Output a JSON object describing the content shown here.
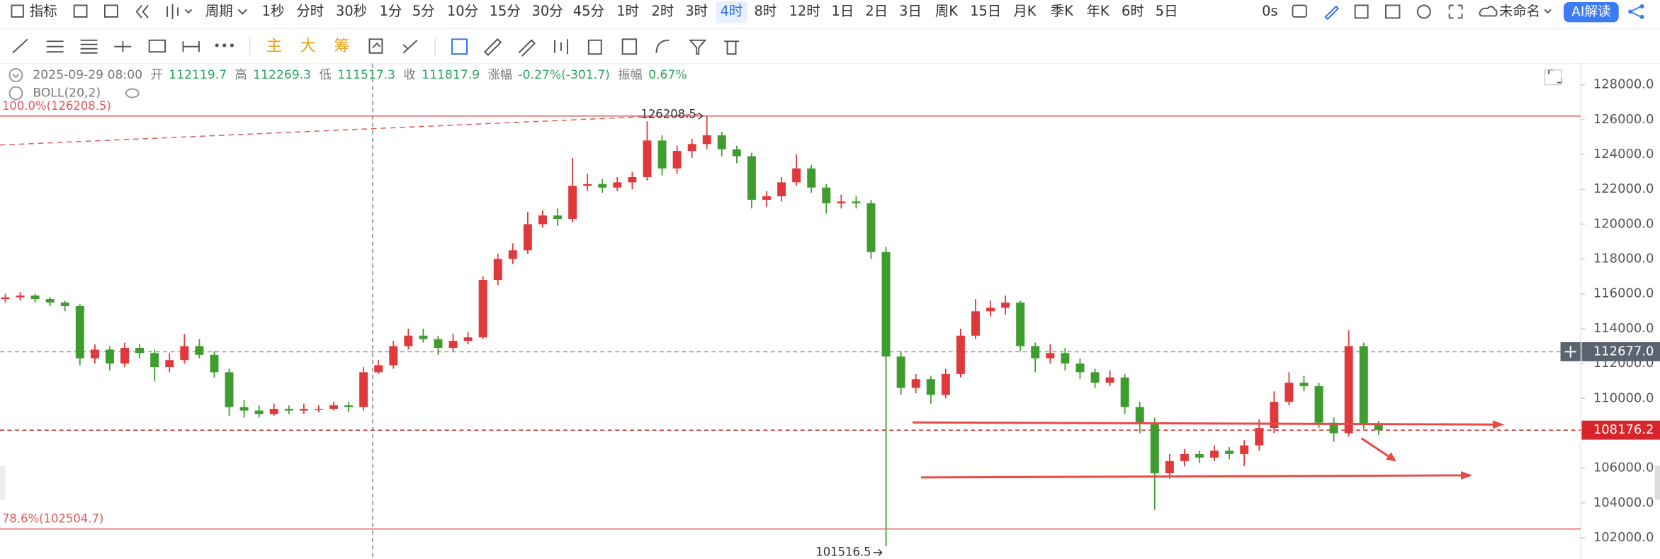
{
  "toolbar": {
    "indicator": "指标",
    "period": "周期",
    "periods": [
      "1秒",
      "分时",
      "30秒",
      "1分",
      "5分",
      "10分",
      "15分",
      "30分",
      "45分",
      "1时",
      "2时",
      "3时",
      "4时",
      "8时",
      "12时",
      "1日",
      "2日",
      "3日",
      "周K",
      "15日",
      "月K",
      "季K",
      "年K",
      "6时",
      "5日"
    ],
    "active_index": 12,
    "timer": "0s",
    "layout_name": "未命名",
    "ai_button": "AI解读",
    "chips": [
      "主",
      "大",
      "筹"
    ]
  },
  "info": {
    "time": "2025-09-29 08:00",
    "open_label": "开",
    "open": 112119.7,
    "high_label": "高",
    "high": 112269.3,
    "low_label": "低",
    "low": 111517.3,
    "close_label": "收",
    "close": 111817.9,
    "change_label": "涨幅",
    "change": "-0.27%(-301.7)",
    "amplitude_label": "振幅",
    "amplitude": "0.67%",
    "indicator": "BOLL(20,2)"
  },
  "chart_data": {
    "type": "candlestick",
    "up_color": "#e0393c",
    "down_color": "#3f9d2f",
    "ylim": [
      100780,
      129220
    ],
    "yticks": [
      {
        "value": 102000,
        "label": "102000.0"
      },
      {
        "value": 104000,
        "label": "104000.0"
      },
      {
        "value": 106000,
        "label": "106000.0"
      },
      {
        "value": 108000,
        "label": "108000.0"
      },
      {
        "value": 110000,
        "label": "110000.0"
      },
      {
        "value": 112000,
        "label": "112000.0"
      },
      {
        "value": 114000,
        "label": "114000.0"
      },
      {
        "value": 116000,
        "label": "116000.0"
      },
      {
        "value": 118000,
        "label": "118000.0"
      },
      {
        "value": 120000,
        "label": "120000.0"
      },
      {
        "value": 122000,
        "label": "122000.0"
      },
      {
        "value": 124000,
        "label": "124000.0"
      },
      {
        "value": 126000,
        "label": "126000.0"
      },
      {
        "value": 128000,
        "label": "128000.0"
      }
    ],
    "grid": false,
    "levels": [
      {
        "value": 126208.5,
        "label": "100.0%(126208.5)"
      },
      {
        "value": 102504.7,
        "label": "78.6%(102504.7)"
      }
    ],
    "level_color": "#e05a5a",
    "crosshair_price": {
      "value": 112677.0,
      "label": "112677.0"
    },
    "last_price": {
      "value": 108176.2,
      "label": "108176.2"
    },
    "max_label": 126208.5,
    "min_label": 101516.5,
    "candles": [
      [
        115700,
        116000,
        115500,
        115800
      ],
      [
        115800,
        116100,
        115600,
        115900
      ],
      [
        115900,
        116000,
        115500,
        115700
      ],
      [
        115700,
        115800,
        115300,
        115500
      ],
      [
        115500,
        115600,
        115000,
        115300
      ],
      [
        115300,
        115400,
        111900,
        112300
      ],
      [
        112300,
        113100,
        112000,
        112800
      ],
      [
        112800,
        113000,
        111600,
        112000
      ],
      [
        112000,
        113200,
        111800,
        112900
      ],
      [
        112900,
        113100,
        112300,
        112600
      ],
      [
        112600,
        112800,
        111000,
        111800
      ],
      [
        111800,
        112600,
        111500,
        112200
      ],
      [
        112200,
        113700,
        112000,
        113000
      ],
      [
        113000,
        113400,
        112300,
        112500
      ],
      [
        112500,
        112700,
        111200,
        111500
      ],
      [
        111500,
        111700,
        109000,
        109500
      ],
      [
        109500,
        109900,
        108900,
        109300
      ],
      [
        109300,
        109600,
        108900,
        109100
      ],
      [
        109100,
        109700,
        109000,
        109400
      ],
      [
        109400,
        109600,
        109100,
        109300
      ],
      [
        109300,
        109700,
        109100,
        109400
      ],
      [
        109400,
        109600,
        109200,
        109400
      ],
      [
        109400,
        109800,
        109300,
        109600
      ],
      [
        109600,
        109800,
        109200,
        109500
      ],
      [
        109500,
        111800,
        109300,
        111500
      ],
      [
        111500,
        112200,
        111400,
        111900
      ],
      [
        111900,
        113300,
        111700,
        113000
      ],
      [
        113000,
        114000,
        112800,
        113600
      ],
      [
        113600,
        114000,
        113200,
        113400
      ],
      [
        113400,
        113600,
        112500,
        112900
      ],
      [
        112900,
        113700,
        112700,
        113300
      ],
      [
        113300,
        113800,
        113100,
        113500
      ],
      [
        113500,
        117000,
        113400,
        116800
      ],
      [
        116800,
        118300,
        116500,
        118000
      ],
      [
        118000,
        118900,
        117700,
        118500
      ],
      [
        118500,
        120700,
        118300,
        120000
      ],
      [
        120000,
        120800,
        119800,
        120500
      ],
      [
        120500,
        120900,
        119900,
        120300
      ],
      [
        120300,
        123800,
        120100,
        122200
      ],
      [
        122200,
        122900,
        121900,
        122300
      ],
      [
        122300,
        122600,
        121800,
        122100
      ],
      [
        122100,
        122700,
        121900,
        122400
      ],
      [
        122400,
        123000,
        122000,
        122700
      ],
      [
        122700,
        125900,
        122500,
        124800
      ],
      [
        124800,
        125100,
        122800,
        123200
      ],
      [
        123200,
        124500,
        122900,
        124200
      ],
      [
        124200,
        124900,
        123800,
        124600
      ],
      [
        124600,
        126208.5,
        124300,
        125100
      ],
      [
        125100,
        125300,
        123900,
        124300
      ],
      [
        124300,
        124500,
        123500,
        123900
      ],
      [
        123900,
        124100,
        120900,
        121400
      ],
      [
        121400,
        121900,
        121000,
        121600
      ],
      [
        121600,
        122700,
        121300,
        122400
      ],
      [
        122400,
        124000,
        122200,
        123200
      ],
      [
        123200,
        123400,
        121800,
        122100
      ],
      [
        122100,
        122300,
        120600,
        121200
      ],
      [
        121200,
        121700,
        120900,
        121300
      ],
      [
        121300,
        121600,
        120900,
        121200
      ],
      [
        121200,
        121400,
        118000,
        118400
      ],
      [
        118400,
        118700,
        101516.5,
        112400
      ],
      [
        112400,
        112700,
        110200,
        110600
      ],
      [
        110600,
        111400,
        110300,
        111100
      ],
      [
        111100,
        111300,
        109700,
        110200
      ],
      [
        110200,
        111700,
        110000,
        111400
      ],
      [
        111400,
        114000,
        111200,
        113600
      ],
      [
        113600,
        115700,
        113400,
        115000
      ],
      [
        115000,
        115600,
        114700,
        115200
      ],
      [
        115200,
        115900,
        114800,
        115500
      ],
      [
        115500,
        115600,
        112700,
        113000
      ],
      [
        113000,
        113200,
        111500,
        112300
      ],
      [
        112300,
        113100,
        112000,
        112600
      ],
      [
        112600,
        112900,
        111600,
        112000
      ],
      [
        112000,
        112300,
        111100,
        111500
      ],
      [
        111500,
        111700,
        110600,
        110900
      ],
      [
        110900,
        111600,
        110700,
        111200
      ],
      [
        111200,
        111400,
        109100,
        109500
      ],
      [
        109500,
        109800,
        108000,
        108600
      ],
      [
        108600,
        108900,
        103600,
        105700
      ],
      [
        105700,
        106800,
        105400,
        106400
      ],
      [
        106400,
        107100,
        106100,
        106800
      ],
      [
        106800,
        107000,
        106300,
        106600
      ],
      [
        106600,
        107300,
        106400,
        107000
      ],
      [
        107000,
        107200,
        106500,
        106800
      ],
      [
        106800,
        107600,
        106100,
        107300
      ],
      [
        107300,
        108800,
        107000,
        108300
      ],
      [
        108300,
        110400,
        108000,
        109800
      ],
      [
        109800,
        111500,
        109600,
        110900
      ],
      [
        110900,
        111300,
        110400,
        110700
      ],
      [
        110700,
        110900,
        108300,
        108600
      ],
      [
        108600,
        108900,
        107500,
        108000
      ],
      [
        108000,
        113900,
        107800,
        113000
      ],
      [
        113000,
        113200,
        108200,
        108500
      ],
      [
        108500,
        108700,
        107900,
        108176.2
      ]
    ]
  }
}
